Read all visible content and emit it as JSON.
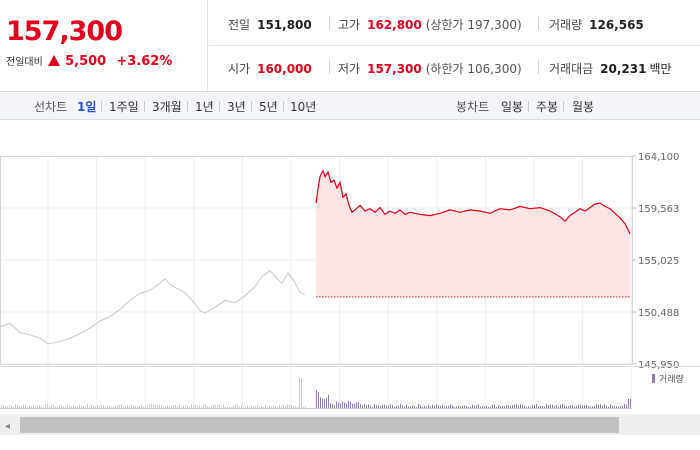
{
  "quote": {
    "price": "157,300",
    "change_label": "전일대비",
    "change_amount": "5,500",
    "change_percent": "+3.62%",
    "stats": [
      {
        "label": "전일",
        "value": "151,800",
        "note": ""
      },
      {
        "label": "고가",
        "value": "162,800",
        "note": "(상한가 197,300)"
      },
      {
        "label": "거래량",
        "value": "126,565",
        "note": ""
      },
      {
        "label": "시가",
        "value": "160,000",
        "note": ""
      },
      {
        "label": "저가",
        "value": "157,300",
        "note": "(하한가 106,300)"
      },
      {
        "label": "거래대금",
        "value": "20,231",
        "note": "",
        "unit": "백만"
      }
    ]
  },
  "tabs": {
    "line_label": "선차트",
    "line_periods": [
      "1일",
      "1주일",
      "3개월",
      "1년",
      "3년",
      "5년",
      "10년"
    ],
    "active_period": "1일",
    "candle_label": "봉차트",
    "candle_periods": [
      "일봉",
      "주봉",
      "월봉"
    ]
  },
  "colors": {
    "up": "#e0001b",
    "accent": "#2b50c9",
    "prev_session_line": "#c8c8c8",
    "fill": "#fde5e6",
    "volume": "#8f7bb5"
  },
  "chart_data": {
    "type": "line",
    "yticks": [
      "164,100",
      "159,563",
      "155,025",
      "150,488",
      "145,950"
    ],
    "ylim": [
      145950,
      164100
    ],
    "baseline": 151800,
    "legend": "거래량",
    "prev_session": {
      "x": [
        0,
        10,
        20,
        30,
        40,
        48,
        60,
        70,
        80,
        90,
        100,
        110,
        120,
        130,
        140,
        150,
        160,
        165,
        170,
        178,
        186,
        194,
        200,
        205,
        215,
        225,
        235,
        245,
        255,
        262,
        270,
        275,
        282,
        288,
        294,
        300,
        305
      ],
      "y": [
        149200,
        149500,
        148700,
        148500,
        148200,
        147700,
        147900,
        148200,
        148600,
        149100,
        149700,
        150100,
        150700,
        151500,
        152100,
        152400,
        153000,
        153400,
        152900,
        152500,
        152100,
        151300,
        150600,
        150400,
        150900,
        151500,
        151300,
        151900,
        152700,
        153600,
        154100,
        153600,
        153000,
        153900,
        153200,
        152200,
        152000
      ]
    },
    "series": [
      {
        "x": [
          316,
          318,
          320,
          323,
          325,
          328,
          331,
          334,
          337,
          340,
          343,
          346,
          349,
          352,
          355,
          360,
          365,
          370,
          375,
          380,
          385,
          390,
          395,
          400,
          405,
          410,
          420,
          430,
          440,
          450,
          460,
          470,
          480,
          490,
          500,
          510,
          520,
          530,
          540,
          550,
          560,
          565,
          570,
          575,
          580,
          585,
          590,
          595,
          600,
          605,
          610,
          615,
          620,
          625,
          630
        ],
        "y": [
          160000,
          161200,
          162300,
          162800,
          162300,
          162700,
          161800,
          162000,
          161300,
          161800,
          160500,
          160800,
          159800,
          159200,
          159400,
          159800,
          159300,
          159500,
          159200,
          159600,
          159000,
          159300,
          159100,
          159400,
          159000,
          159200,
          159000,
          158900,
          159100,
          159400,
          159200,
          159400,
          159300,
          159100,
          159500,
          159400,
          159700,
          159500,
          159600,
          159300,
          158800,
          158400,
          158900,
          159200,
          159500,
          159300,
          159600,
          159900,
          160000,
          159700,
          159500,
          159100,
          158700,
          158200,
          157300
        ]
      }
    ]
  }
}
